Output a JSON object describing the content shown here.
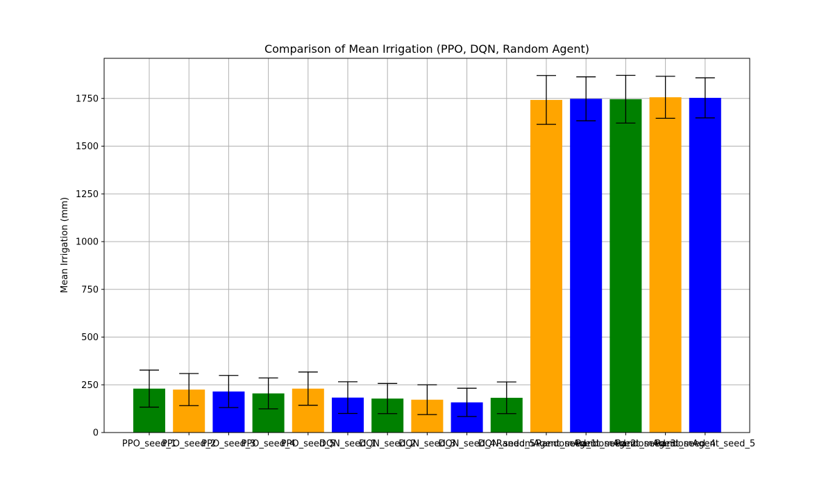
{
  "chart_data": {
    "type": "bar",
    "title": "Comparison of Mean Irrigation (PPO, DQN, Random Agent)",
    "xlabel": "",
    "ylabel": "Mean Irrigation (mm)",
    "ylim": [
      0,
      1960
    ],
    "yticks": [
      0,
      250,
      500,
      750,
      1000,
      1250,
      1500,
      1750
    ],
    "grid": true,
    "categories": [
      "PPO_seed_1",
      "PPO_seed_2",
      "PPO_seed_3",
      "PPO_seed_4",
      "PPO_seed_5",
      "DQN_seed_1",
      "DQN_seed_2",
      "DQN_seed_3",
      "DQN_seed_4",
      "DQN_seed_5",
      "RandomAgent_seed_1",
      "RandomAgent_seed_2",
      "RandomAgent_seed_3",
      "RandomAgent_seed_4",
      "RandomAgent_seed_5"
    ],
    "values": [
      230,
      225,
      215,
      205,
      230,
      183,
      178,
      172,
      158,
      182,
      1742,
      1748,
      1746,
      1756,
      1753
    ],
    "errors": [
      97,
      84,
      84,
      81,
      87,
      83,
      79,
      78,
      74,
      83,
      128,
      115,
      125,
      110,
      105
    ],
    "colors": [
      "#008000",
      "#FFA500",
      "#0000FF",
      "#008000",
      "#FFA500",
      "#0000FF",
      "#008000",
      "#FFA500",
      "#0000FF",
      "#008000",
      "#FFA500",
      "#0000FF",
      "#008000",
      "#FFA500",
      "#0000FF"
    ]
  }
}
